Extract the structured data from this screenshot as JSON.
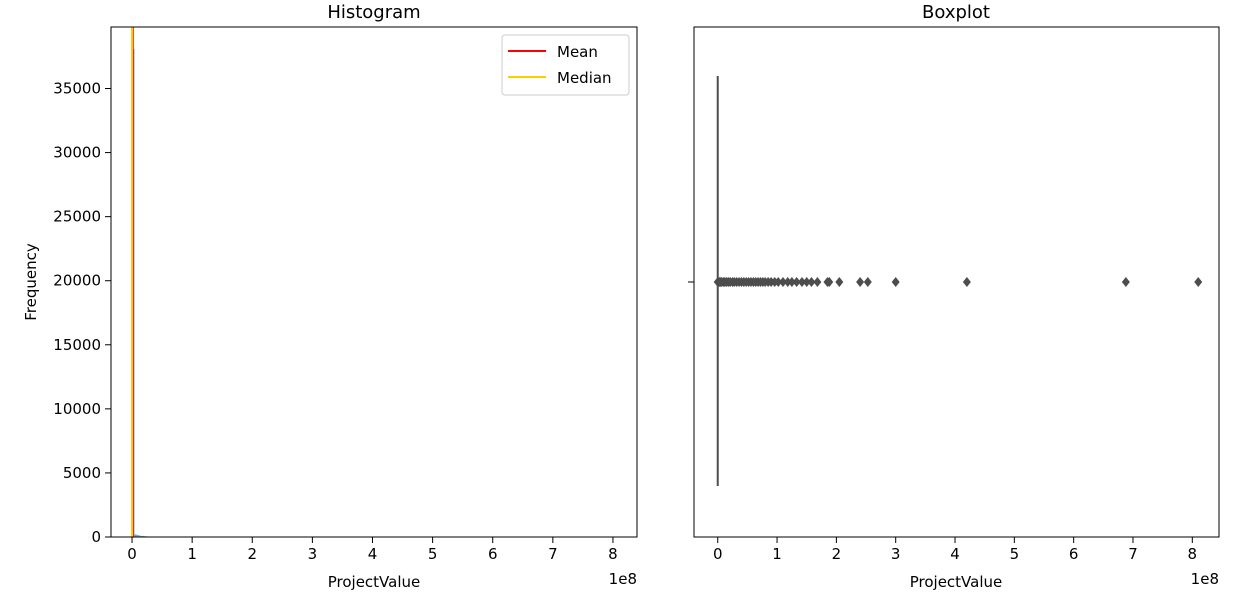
{
  "charts": [
    {
      "id": "histogram",
      "type": "bar",
      "title": "Histogram",
      "xlabel": "ProjectValue",
      "ylabel": "Frequency",
      "x_offset_label": "1e8",
      "xlim": [
        -0.35,
        8.4
      ],
      "ylim": [
        0,
        39800
      ],
      "x_ticks": [
        0,
        1,
        2,
        3,
        4,
        5,
        6,
        7,
        8
      ],
      "x_tick_labels": [
        "0",
        "1",
        "2",
        "3",
        "4",
        "5",
        "6",
        "7",
        "8"
      ],
      "y_ticks": [
        0,
        5000,
        10000,
        15000,
        20000,
        25000,
        30000,
        35000
      ],
      "y_tick_labels": [
        "0",
        "5000",
        "10000",
        "15000",
        "20000",
        "25000",
        "30000",
        "35000"
      ],
      "bin_width": 0.0405,
      "bins": [
        {
          "x": 0.0,
          "count": 38100
        },
        {
          "x": 0.0405,
          "count": 200
        },
        {
          "x": 0.081,
          "count": 150
        },
        {
          "x": 0.1215,
          "count": 100
        },
        {
          "x": 0.162,
          "count": 80
        },
        {
          "x": 0.2025,
          "count": 60
        },
        {
          "x": 0.243,
          "count": 40
        },
        {
          "x": 0.2835,
          "count": 20
        }
      ],
      "mean": 0.012,
      "median": 0.0,
      "legend": {
        "position": "upper right",
        "items": [
          {
            "label": "Mean",
            "color": "#ff0000"
          },
          {
            "label": "Median",
            "color": "#ffcc00"
          }
        ]
      },
      "colors": {
        "bars": "#6fa8dc",
        "mean": "#ff0000",
        "median": "#ffcc00"
      }
    },
    {
      "id": "boxplot",
      "type": "boxplot",
      "title": "Boxplot",
      "xlabel": "ProjectValue",
      "x_offset_label": "1e8",
      "xlim": [
        -0.4,
        8.45
      ],
      "x_ticks": [
        0,
        1,
        2,
        3,
        4,
        5,
        6,
        7,
        8
      ],
      "x_tick_labels": [
        "0",
        "1",
        "2",
        "3",
        "4",
        "5",
        "6",
        "7",
        "8"
      ],
      "whisker_low": 0.0,
      "whisker_high": 0.0,
      "outliers": [
        0.0,
        0.01,
        0.03,
        0.05,
        0.07,
        0.1,
        0.12,
        0.15,
        0.18,
        0.21,
        0.25,
        0.28,
        0.32,
        0.36,
        0.4,
        0.44,
        0.48,
        0.52,
        0.56,
        0.6,
        0.64,
        0.68,
        0.72,
        0.76,
        0.8,
        0.85,
        0.9,
        0.96,
        1.02,
        1.1,
        1.18,
        1.25,
        1.33,
        1.42,
        1.5,
        1.58,
        1.68,
        1.85,
        1.88,
        2.05,
        2.4,
        2.53,
        3.0,
        4.2,
        6.88,
        8.1
      ],
      "colors": {
        "box": "#4d4d4d",
        "outlier": "#4d4d4d"
      }
    }
  ]
}
